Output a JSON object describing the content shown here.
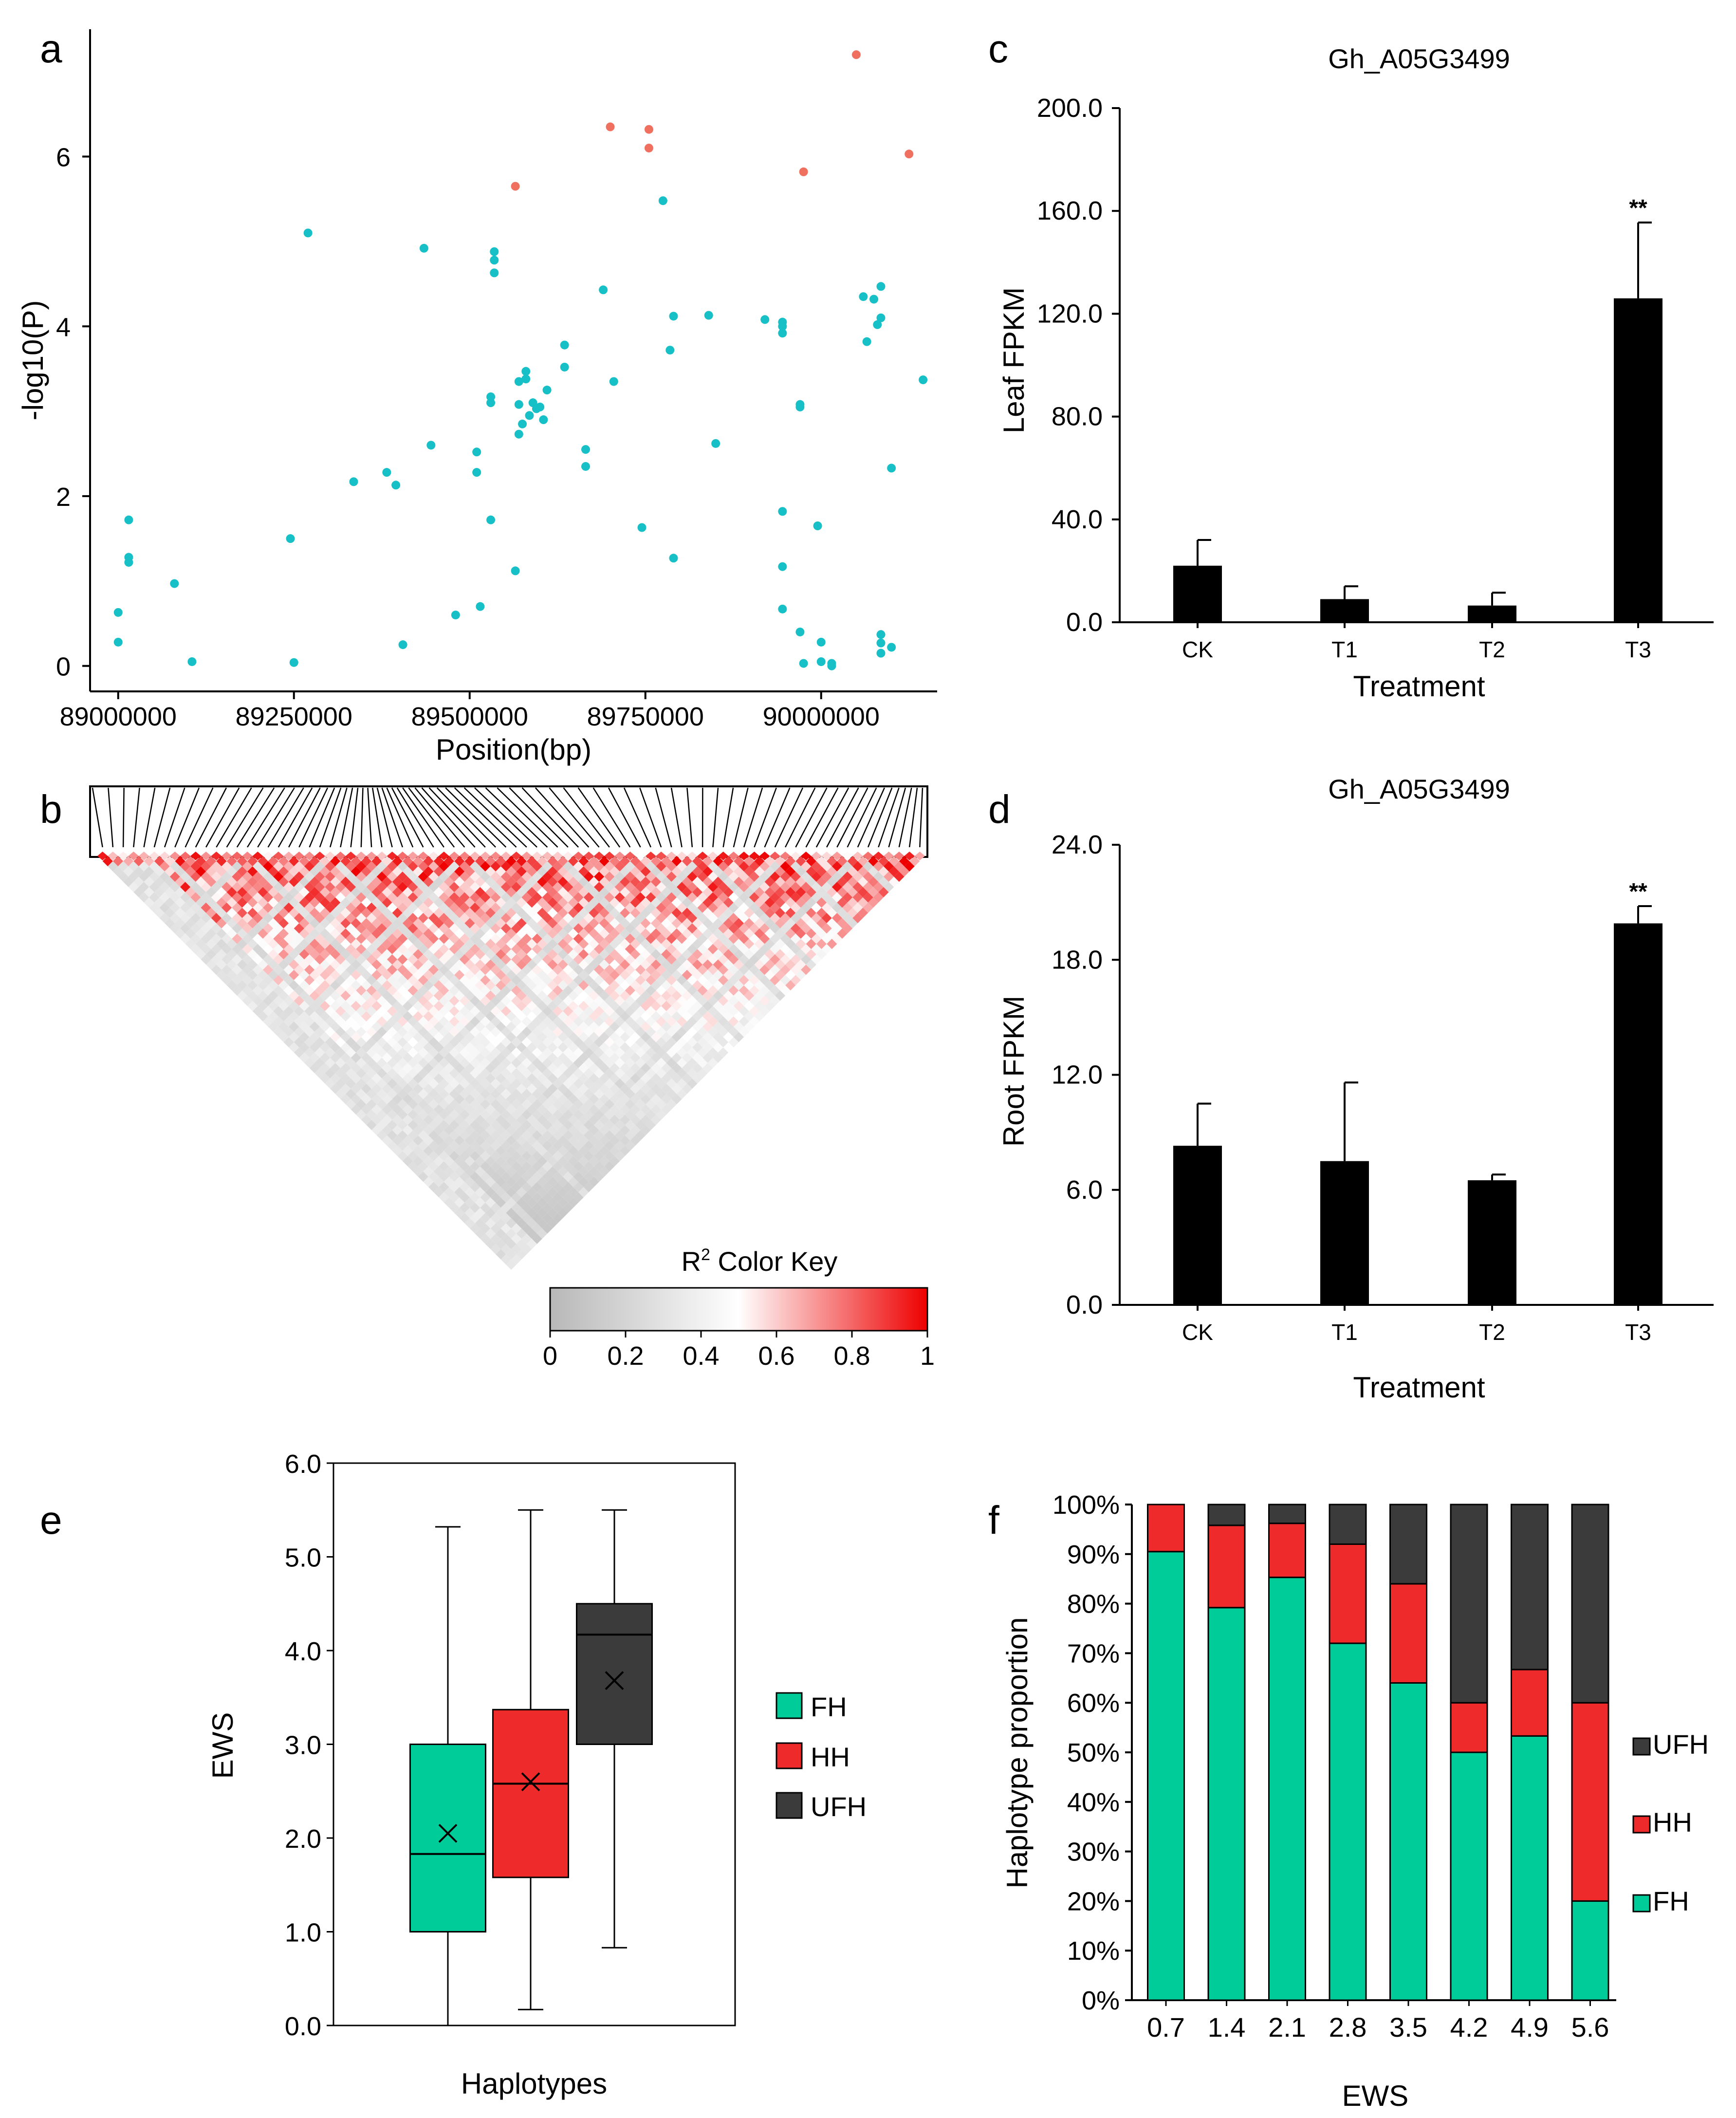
{
  "panel_labels": {
    "a": "a",
    "b": "b",
    "c": "c",
    "d": "d",
    "e": "e",
    "f": "f"
  },
  "colors": {
    "significant_snp": "#f07060",
    "snp": "#17bfc6",
    "bar": "#000000",
    "fh": "#00cc99",
    "hh": "#ee2a2a",
    "ufh": "#3b3b3b",
    "ld_low": "#c8c8c8",
    "ld_mid": "#ffffff",
    "ld_high": "#ee0000"
  },
  "chart_data": [
    {
      "id": "a",
      "type": "scatter",
      "title": "",
      "xlabel": "Position(bp)",
      "ylabel": "-log10(P)",
      "xlim": [
        88960000,
        90165000
      ],
      "ylim": [
        -0.3,
        7.5
      ],
      "xticks": [
        89000000,
        89250000,
        89500000,
        89750000,
        90000000
      ],
      "xtick_labels": [
        "89000000",
        "89250000",
        "89500000",
        "89750000",
        "90000000"
      ],
      "yticks": [
        0,
        2,
        4,
        6
      ],
      "ytick_labels": [
        "0",
        "2",
        "4",
        "6"
      ],
      "series": [
        {
          "name": "significant",
          "color": "#f07060",
          "points": [
            [
              90050000,
              7.2
            ],
            [
              89700000,
              6.35
            ],
            [
              89755000,
              6.32
            ],
            [
              89755000,
              6.1
            ],
            [
              89565000,
              5.65
            ],
            [
              89975000,
              5.82
            ],
            [
              90125000,
              6.03
            ]
          ]
        },
        {
          "name": "other",
          "color": "#17bfc6",
          "points": [
            [
              89000000,
              0.28
            ],
            [
              89000000,
              0.63
            ],
            [
              89015000,
              1.72
            ],
            [
              89015000,
              1.28
            ],
            [
              89015000,
              1.22
            ],
            [
              89080000,
              0.97
            ],
            [
              89105000,
              0.05
            ],
            [
              89245000,
              1.5
            ],
            [
              89250000,
              0.04
            ],
            [
              89270000,
              5.1
            ],
            [
              89335000,
              2.17
            ],
            [
              89382000,
              2.28
            ],
            [
              89395000,
              2.13
            ],
            [
              89405000,
              0.25
            ],
            [
              89435000,
              4.92
            ],
            [
              89445000,
              2.6
            ],
            [
              89480000,
              0.6
            ],
            [
              89510000,
              2.52
            ],
            [
              89510000,
              2.28
            ],
            [
              89515000,
              0.7
            ],
            [
              89530000,
              3.1
            ],
            [
              89530000,
              3.17
            ],
            [
              89530000,
              1.72
            ],
            [
              89535000,
              4.88
            ],
            [
              89535000,
              4.78
            ],
            [
              89535000,
              4.63
            ],
            [
              89565000,
              1.12
            ],
            [
              89570000,
              3.35
            ],
            [
              89570000,
              3.08
            ],
            [
              89570000,
              2.73
            ],
            [
              89575000,
              2.85
            ],
            [
              89580000,
              3.47
            ],
            [
              89580000,
              3.38
            ],
            [
              89585000,
              2.95
            ],
            [
              89590000,
              3.1
            ],
            [
              89595000,
              3.03
            ],
            [
              89600000,
              3.05
            ],
            [
              89605000,
              2.9
            ],
            [
              89610000,
              3.25
            ],
            [
              89635000,
              3.78
            ],
            [
              89635000,
              3.52
            ],
            [
              89665000,
              2.55
            ],
            [
              89665000,
              2.35
            ],
            [
              89690000,
              4.43
            ],
            [
              89705000,
              3.35
            ],
            [
              89745000,
              1.63
            ],
            [
              89775000,
              5.48
            ],
            [
              89785000,
              3.72
            ],
            [
              89790000,
              4.12
            ],
            [
              89790000,
              1.27
            ],
            [
              89840000,
              4.13
            ],
            [
              89850000,
              2.62
            ],
            [
              89920000,
              4.08
            ],
            [
              89945000,
              4.05
            ],
            [
              89945000,
              4.0
            ],
            [
              89945000,
              3.92
            ],
            [
              89945000,
              1.82
            ],
            [
              89945000,
              1.17
            ],
            [
              89945000,
              0.67
            ],
            [
              89970000,
              3.08
            ],
            [
              89970000,
              3.05
            ],
            [
              89970000,
              0.4
            ],
            [
              89975000,
              0.03
            ],
            [
              89995000,
              1.65
            ],
            [
              90000000,
              0.28
            ],
            [
              90000000,
              0.05
            ],
            [
              90015000,
              0.03
            ],
            [
              90015000,
              0.0
            ],
            [
              90060000,
              4.35
            ],
            [
              90065000,
              3.82
            ],
            [
              90075000,
              4.32
            ],
            [
              90080000,
              4.02
            ],
            [
              90085000,
              4.47
            ],
            [
              90085000,
              4.1
            ],
            [
              90085000,
              0.37
            ],
            [
              90085000,
              0.27
            ],
            [
              90085000,
              0.15
            ],
            [
              90100000,
              2.33
            ],
            [
              90100000,
              0.22
            ],
            [
              90145000,
              3.37
            ]
          ]
        }
      ]
    },
    {
      "id": "b",
      "type": "heatmap",
      "title": "",
      "color_key_title": "R",
      "color_key_sup": "2",
      "color_key_suffix": " Color Key",
      "color_key_ticks": [
        0,
        0.2,
        0.4,
        0.6,
        0.8,
        1
      ],
      "color_key_tick_labels": [
        "0",
        "0.2",
        "0.4",
        "0.6",
        "0.8",
        "1"
      ],
      "snp_count": 80
    },
    {
      "id": "c",
      "type": "bar",
      "title": "Gh_A05G3499",
      "xlabel": "Treatment",
      "ylabel": "Leaf FPKM",
      "categories": [
        "CK",
        "T1",
        "T2",
        "T3"
      ],
      "values": [
        22.0,
        9.0,
        6.5,
        126.0
      ],
      "errors": [
        10.0,
        5.0,
        5.0,
        29.5
      ],
      "annotations": [
        "",
        "",
        "",
        "**"
      ],
      "ylim": [
        0,
        200
      ],
      "yticks": [
        0,
        40,
        80,
        120,
        160,
        200
      ],
      "ytick_labels": [
        "0.0",
        "40.0",
        "80.0",
        "120.0",
        "160.0",
        "200.0"
      ]
    },
    {
      "id": "d",
      "type": "bar",
      "title": "Gh_A05G3499",
      "xlabel": "Treatment",
      "ylabel": "Root FPKM",
      "categories": [
        "CK",
        "T1",
        "T2",
        "T3"
      ],
      "values": [
        8.3,
        7.5,
        6.5,
        19.9
      ],
      "errors": [
        2.2,
        4.1,
        0.3,
        0.9
      ],
      "annotations": [
        "",
        "",
        "",
        "**"
      ],
      "ylim": [
        0,
        24
      ],
      "yticks": [
        0,
        6,
        12,
        18,
        24
      ],
      "ytick_labels": [
        "0.0",
        "6.0",
        "12.0",
        "18.0",
        "24.0"
      ]
    },
    {
      "id": "e",
      "type": "box",
      "title": "",
      "xlabel": "Haplotypes",
      "ylabel": "EWS",
      "ylim": [
        0,
        6
      ],
      "yticks": [
        0,
        1,
        2,
        3,
        4,
        5,
        6
      ],
      "ytick_labels": [
        "0.0",
        "1.0",
        "2.0",
        "3.0",
        "4.0",
        "5.0",
        "6.0"
      ],
      "series": [
        {
          "name": "FH",
          "color": "#00cc99",
          "min": 0.0,
          "q1": 1.0,
          "median": 1.83,
          "q3": 3.0,
          "max": 5.32,
          "mean": 2.05
        },
        {
          "name": "HH",
          "color": "#ee2a2a",
          "min": 0.17,
          "q1": 1.58,
          "median": 2.58,
          "q3": 3.37,
          "max": 5.5,
          "mean": 2.6
        },
        {
          "name": "UFH",
          "color": "#3b3b3b",
          "min": 0.83,
          "q1": 3.0,
          "median": 4.17,
          "q3": 4.5,
          "max": 5.5,
          "mean": 3.68
        }
      ],
      "legend": [
        "FH",
        "HH",
        "UFH"
      ]
    },
    {
      "id": "f",
      "type": "bar",
      "stacked": true,
      "title": "",
      "xlabel": "EWS",
      "ylabel": "Haplotype proportion",
      "categories": [
        "0.7",
        "1.4",
        "2.1",
        "2.8",
        "3.5",
        "4.2",
        "4.9",
        "5.6"
      ],
      "series": [
        {
          "name": "FH",
          "color": "#00cc99",
          "values": [
            90.5,
            79.2,
            85.3,
            72.0,
            64.0,
            50.0,
            53.3,
            20.0
          ]
        },
        {
          "name": "HH",
          "color": "#ee2a2a",
          "values": [
            9.5,
            16.6,
            10.9,
            20.0,
            20.0,
            10.0,
            13.4,
            40.0
          ]
        },
        {
          "name": "UFH",
          "color": "#3b3b3b",
          "values": [
            0.0,
            4.2,
            3.8,
            8.0,
            16.0,
            40.0,
            33.3,
            40.0
          ]
        }
      ],
      "ylim": [
        0,
        100
      ],
      "yticks": [
        0,
        10,
        20,
        30,
        40,
        50,
        60,
        70,
        80,
        90,
        100
      ],
      "ytick_labels": [
        "0%",
        "10%",
        "20%",
        "30%",
        "40%",
        "50%",
        "60%",
        "70%",
        "80%",
        "90%",
        "100%"
      ],
      "legend": [
        "UFH",
        "HH",
        "FH"
      ]
    }
  ]
}
